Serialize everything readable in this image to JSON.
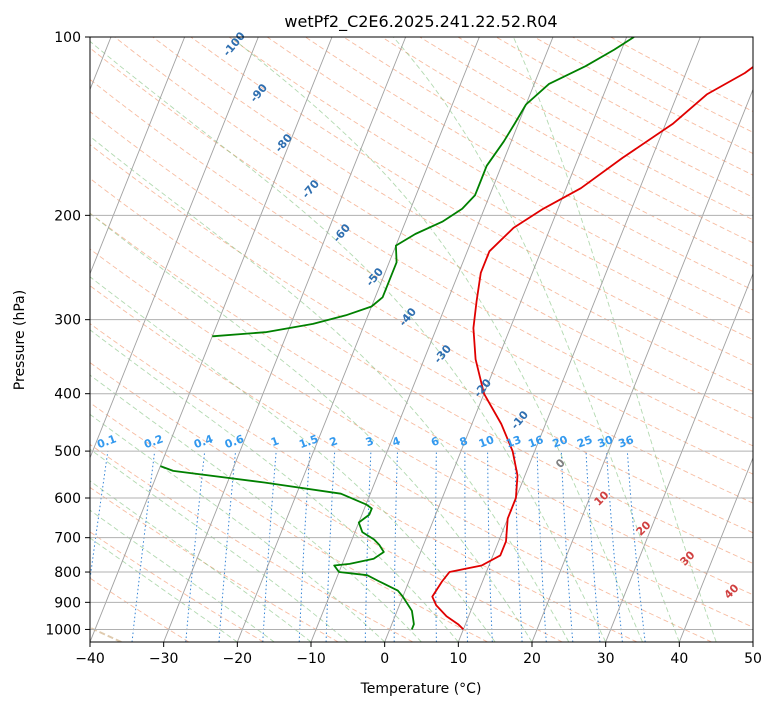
{
  "chart_data": {
    "type": "line",
    "title": "wetPf2_C2E6.2025.241.22.52.R04",
    "xlabel": "Temperature (°C)",
    "ylabel": "Pressure (hPa)",
    "xlim": [
      -40,
      50
    ],
    "ylim": [
      1050,
      100
    ],
    "y_scale": "log",
    "grid": true,
    "x_ticks": [
      -40,
      -30,
      -20,
      -10,
      0,
      10,
      20,
      30,
      40,
      50
    ],
    "y_ticks": [
      100,
      200,
      300,
      400,
      500,
      600,
      700,
      800,
      900,
      1000
    ],
    "series": [
      {
        "color": "#e00000",
        "points": [
          [
            10,
            1000
          ],
          [
            9,
            980
          ],
          [
            7,
            950
          ],
          [
            5,
            910
          ],
          [
            4,
            880
          ],
          [
            4.5,
            830
          ],
          [
            5,
            800
          ],
          [
            7,
            790
          ],
          [
            9,
            780
          ],
          [
            11,
            750
          ],
          [
            11,
            710
          ],
          [
            10,
            650
          ],
          [
            10,
            600
          ],
          [
            9,
            550
          ],
          [
            7,
            500
          ],
          [
            4,
            450
          ],
          [
            0,
            400
          ],
          [
            -3,
            350
          ],
          [
            -5,
            310
          ],
          [
            -6,
            280
          ],
          [
            -7,
            250
          ],
          [
            -7,
            230
          ],
          [
            -5,
            210
          ],
          [
            -2,
            195
          ],
          [
            2,
            180
          ],
          [
            6,
            160
          ],
          [
            11,
            140
          ],
          [
            14,
            125
          ],
          [
            18,
            115
          ],
          [
            21,
            105
          ],
          [
            24,
            100
          ]
        ]
      },
      {
        "color": "#008000",
        "points": [
          [
            3,
            1000
          ],
          [
            3,
            980
          ],
          [
            2,
            930
          ],
          [
            0,
            880
          ],
          [
            -1,
            860
          ],
          [
            -2,
            850
          ],
          [
            -4,
            830
          ],
          [
            -6,
            810
          ],
          [
            -10,
            800
          ],
          [
            -11,
            780
          ],
          [
            -9,
            775
          ],
          [
            -6,
            760
          ],
          [
            -5,
            740
          ],
          [
            -6,
            720
          ],
          [
            -7,
            705
          ],
          [
            -9,
            685
          ],
          [
            -10,
            660
          ],
          [
            -9,
            640
          ],
          [
            -9,
            625
          ],
          [
            -10,
            615
          ],
          [
            -14,
            590
          ],
          [
            -25,
            565
          ],
          [
            -38,
            540
          ],
          [
            -40,
            530
          ]
        ]
      },
      {
        "color": "#008000",
        "points": [
          [
            -40,
            320
          ],
          [
            -33,
            315
          ],
          [
            -27,
            305
          ],
          [
            -23,
            295
          ],
          [
            -20,
            285
          ],
          [
            -19,
            275
          ],
          [
            -19,
            265
          ],
          [
            -19,
            250
          ],
          [
            -19,
            240
          ],
          [
            -20,
            225
          ],
          [
            -18,
            215
          ],
          [
            -15,
            205
          ],
          [
            -13,
            195
          ],
          [
            -12,
            185
          ],
          [
            -12,
            175
          ],
          [
            -12,
            165
          ],
          [
            -11,
            150
          ],
          [
            -10.5,
            140
          ],
          [
            -10,
            130
          ],
          [
            -8,
            120
          ],
          [
            -4,
            112
          ],
          [
            -1,
            105
          ],
          [
            1,
            100
          ]
        ]
      }
    ],
    "dry_adiabat_labels": [
      "-100",
      "-90",
      "-80",
      "-70",
      "-60",
      "-50",
      "-40",
      "-30",
      "-20",
      "-10"
    ],
    "mixing_ratio_labels": [
      "0.1",
      "0.2",
      "0.4",
      "0.6",
      "1",
      "1.5",
      "2",
      "3",
      "4",
      "6",
      "8",
      "10",
      "13",
      "16",
      "20",
      "25",
      "30",
      "36"
    ],
    "moist_adiabat_labels": [
      "0",
      "10",
      "20",
      "30",
      "40"
    ]
  }
}
